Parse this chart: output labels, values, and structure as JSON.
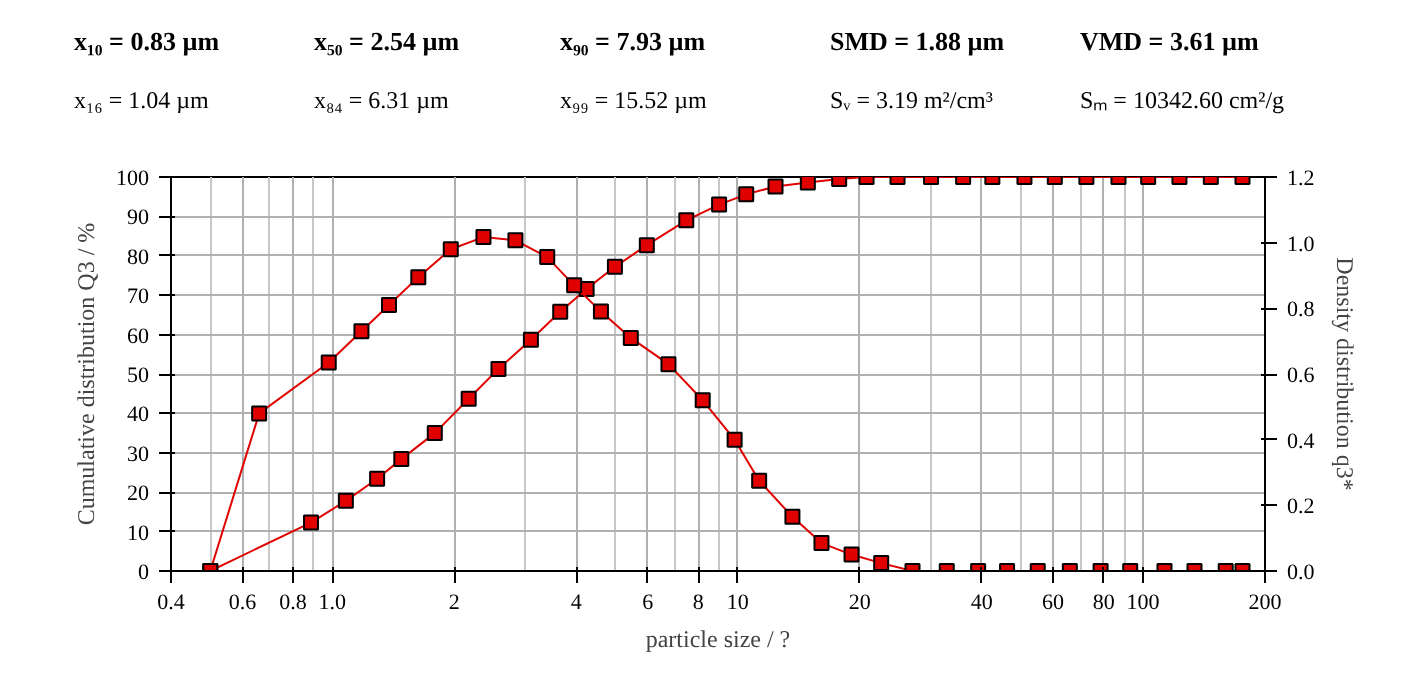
{
  "chart_data": {
    "type": "line",
    "annotations": [
      "x₁₀ = 0.83 µm",
      "x₅₀ = 2.54 µm",
      "x₉₀ = 7.93 µm",
      "SMD = 1.88 µm",
      "VMD = 3.61 µm",
      "x₁₆ = 1.04 µm",
      "x₈₄ = 6.31 µm",
      "x₉₉ = 15.52 µm",
      "Sᵥ = 3.19 m²/cm³",
      "Sₘ = 10342.60 cm²/g"
    ],
    "xlabel": "particle size / ?",
    "ylabel": "Cumulative distribution Q3 / %",
    "y2label": "Density distribution q3*",
    "log": "x",
    "grid": true,
    "marker": "square",
    "line_style": "solid",
    "xlim": [
      0.4,
      200
    ],
    "xticks": [
      0.4,
      0.6,
      0.8,
      {
        "value": 1,
        "label": "1.0"
      },
      2,
      4,
      6,
      8,
      10,
      20,
      40,
      60,
      80,
      100,
      200
    ],
    "ylim": [
      0,
      100
    ],
    "yticks": [
      0,
      10,
      20,
      30,
      40,
      50,
      60,
      70,
      80,
      90,
      100
    ],
    "y2lim": [
      0,
      1.2
    ],
    "y2ticks": [
      {
        "value": 0,
        "label": "0.0"
      },
      0.2,
      0.4,
      0.6,
      0.8,
      {
        "value": 1,
        "label": "1.0"
      },
      1.2
    ],
    "series": [
      {
        "color": "#e00000",
        "x": [
          0.5,
          0.886,
          1.08,
          1.29,
          1.48,
          1.79,
          2.17,
          2.57,
          3.09,
          3.65,
          4.24,
          4.98,
          5.97,
          7.47,
          9.0,
          10.5,
          12.4,
          14.9,
          17.8,
          20.8,
          24.8,
          30,
          36,
          42.5,
          51,
          60.6,
          72.5,
          87,
          103,
          123,
          147,
          176
        ],
        "values": [
          0,
          12.3,
          17.8,
          23.4,
          28.4,
          35,
          43.7,
          51.3,
          58.7,
          65.8,
          71.6,
          77.2,
          82.7,
          89,
          93,
          95.6,
          97.6,
          98.6,
          99.5,
          100,
          100,
          100,
          100,
          100,
          100,
          100,
          100,
          100,
          100,
          100,
          100,
          100
        ]
      },
      {
        "color": "#e00000",
        "axis": "y2",
        "x": [
          0.5,
          0.66,
          0.98,
          1.18,
          1.38,
          1.63,
          1.96,
          2.36,
          2.83,
          3.39,
          3.95,
          4.6,
          5.45,
          6.75,
          8.2,
          9.83,
          11.3,
          13.65,
          16.1,
          19.1,
          22.6,
          27,
          32.8,
          39.2,
          46.2,
          55,
          66,
          78.6,
          93,
          113,
          134,
          160,
          176
        ],
        "values": [
          0,
          0.48,
          0.635,
          0.73,
          0.81,
          0.895,
          0.98,
          1.017,
          1.007,
          0.956,
          0.87,
          0.79,
          0.71,
          0.63,
          0.52,
          0.4,
          0.275,
          0.165,
          0.085,
          0.05,
          0.024,
          0,
          0,
          0,
          0,
          0,
          0,
          0,
          0,
          0,
          0,
          0,
          0
        ]
      }
    ]
  }
}
